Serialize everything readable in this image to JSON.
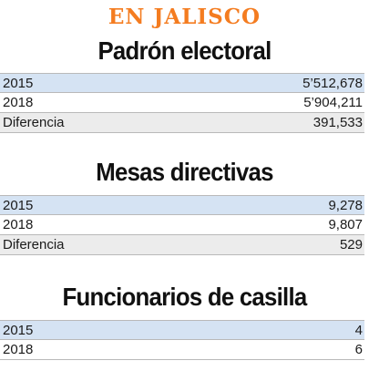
{
  "kicker": "EN JALISCO",
  "colors": {
    "kicker": "#f47c20",
    "row_highlight": "#d5e3f3",
    "row_plain": "#ffffff",
    "row_diff": "#ececec"
  },
  "sections": [
    {
      "title": "Padrón electoral",
      "rows": [
        {
          "label": "2015",
          "value": "5’512,678",
          "style": "highlight"
        },
        {
          "label": "2018",
          "value": "5’904,211",
          "style": "plain"
        },
        {
          "label": "Diferencia",
          "value": "391,533",
          "style": "diff"
        }
      ]
    },
    {
      "title": "Mesas directivas",
      "rows": [
        {
          "label": "2015",
          "value": "9,278",
          "style": "highlight"
        },
        {
          "label": "2018",
          "value": "9,807",
          "style": "plain"
        },
        {
          "label": "Diferencia",
          "value": "529",
          "style": "diff"
        }
      ]
    },
    {
      "title": "Funcionarios de casilla",
      "rows": [
        {
          "label": "2015",
          "value": "4",
          "style": "highlight"
        },
        {
          "label": "2018",
          "value": "6",
          "style": "plain"
        }
      ]
    }
  ]
}
